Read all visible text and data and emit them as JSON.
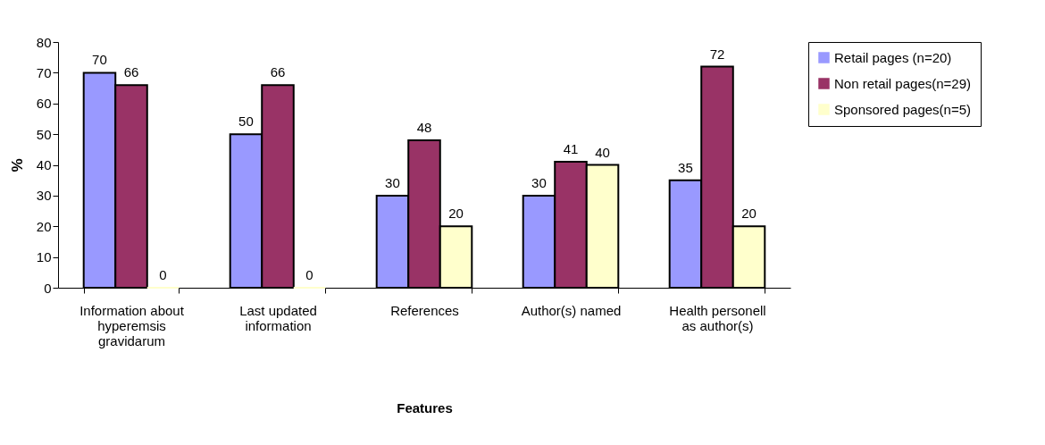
{
  "chart_data": {
    "type": "bar",
    "xlabel": "Features",
    "ylabel": "%",
    "categories": [
      "Information about hyperemsis gravidarum",
      "Last updated information",
      "References",
      "Author(s) named",
      "Health personell as author(s)"
    ],
    "series": [
      {
        "name": "Retail pages (n=20)",
        "color": "#9999ff",
        "values": [
          70,
          50,
          30,
          30,
          35
        ]
      },
      {
        "name": "Non retail pages(n=29)",
        "color": "#993366",
        "values": [
          66,
          66,
          48,
          41,
          72
        ]
      },
      {
        "name": "Sponsored pages(n=5)",
        "color": "#ffffcc",
        "values": [
          0,
          0,
          20,
          40,
          20
        ]
      }
    ],
    "ylim": [
      0,
      80
    ],
    "yticks": [
      0,
      10,
      20,
      30,
      40,
      50,
      60,
      70,
      80
    ],
    "data_labels": true,
    "grid": false,
    "legend": "top right"
  }
}
